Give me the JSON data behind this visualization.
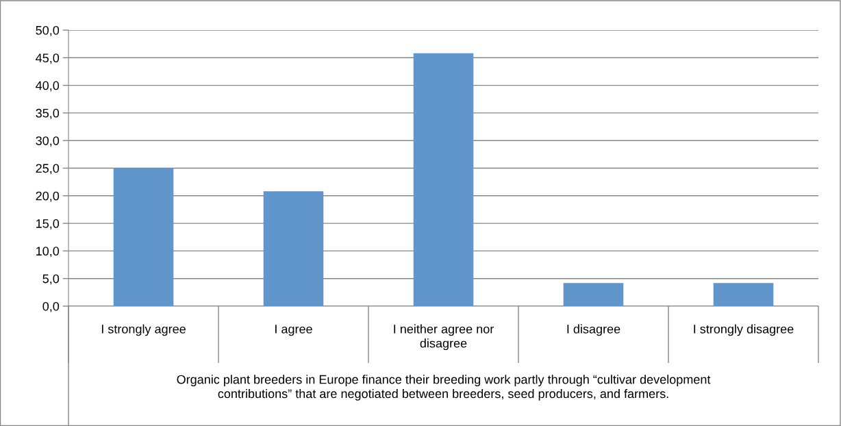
{
  "chart_data": {
    "type": "bar",
    "categories": [
      "I strongly agree",
      "I agree",
      "I neither agree nor\ndisagree",
      "I disagree",
      "I strongly disagree"
    ],
    "values": [
      25.0,
      20.8,
      45.8,
      4.2,
      4.2
    ],
    "color": "#6096cb",
    "xlabel": "Organic plant breeders in Europe finance their breeding work partly through “cultivar development\ncontributions” that are negotiated between breeders, seed producers, and farmers.",
    "ylim": [
      0,
      50
    ],
    "yticks": [
      {
        "value": 0,
        "label": "0,0"
      },
      {
        "value": 5,
        "label": "5,0"
      },
      {
        "value": 10,
        "label": "10,0"
      },
      {
        "value": 15,
        "label": "15,0"
      },
      {
        "value": 20,
        "label": "20,0"
      },
      {
        "value": 25,
        "label": "25,0"
      },
      {
        "value": 30,
        "label": "30,0"
      },
      {
        "value": 35,
        "label": "35,0"
      },
      {
        "value": 40,
        "label": "40,0"
      },
      {
        "value": 45,
        "label": "45,0"
      },
      {
        "value": 50,
        "label": "50,0"
      }
    ],
    "grid": "y",
    "legend": false
  }
}
